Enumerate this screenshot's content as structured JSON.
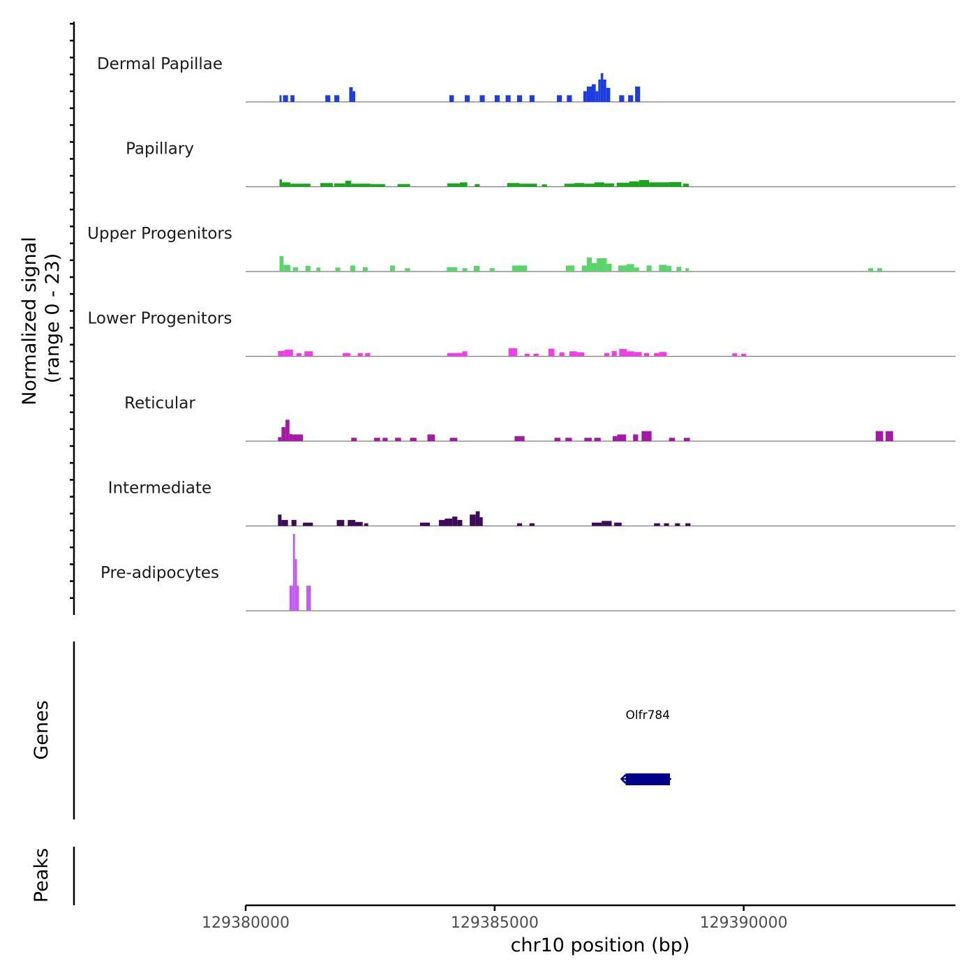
{
  "chart_data": {
    "type": "area",
    "title": "",
    "ylabel_line1": "Normalized signal",
    "ylabel_line2": "(range 0 - 23)",
    "y_range": [
      0,
      23
    ],
    "xlabel": "chr10 position (bp)",
    "x_range": [
      129380000,
      129394250
    ],
    "x_ticks": [
      129380000,
      129385000,
      129390000
    ],
    "x_tick_labels": [
      "129380000",
      "129385000",
      "129390000"
    ],
    "tracks": [
      {
        "name": "Dermal Papillae",
        "color": "#1c3ddf",
        "segments": [
          [
            129380680,
            129380720,
            2
          ],
          [
            129380750,
            129380850,
            2
          ],
          [
            129380900,
            129380980,
            2
          ],
          [
            129381600,
            129381700,
            2
          ],
          [
            129381780,
            129381880,
            2
          ],
          [
            129382080,
            129382150,
            4.4
          ],
          [
            129382150,
            129382200,
            3.2
          ],
          [
            129384090,
            129384180,
            2
          ],
          [
            129384400,
            129384500,
            2
          ],
          [
            129384700,
            129384800,
            2
          ],
          [
            129385000,
            129385100,
            2
          ],
          [
            129385220,
            129385320,
            2
          ],
          [
            129385450,
            129385550,
            2
          ],
          [
            129385700,
            129385800,
            2
          ],
          [
            129386250,
            129386350,
            2
          ],
          [
            129386450,
            129386550,
            2
          ],
          [
            129386780,
            129386850,
            3.2
          ],
          [
            129386850,
            129386950,
            4.6
          ],
          [
            129386950,
            129387030,
            5.3
          ],
          [
            129387030,
            129387080,
            3.2
          ],
          [
            129387080,
            129387130,
            6.7
          ],
          [
            129387130,
            129387180,
            8.6
          ],
          [
            129387180,
            129387240,
            6.7
          ],
          [
            129387240,
            129387320,
            4.2
          ],
          [
            129387500,
            129387600,
            2
          ],
          [
            129387680,
            129387780,
            2
          ],
          [
            129387820,
            129387920,
            4.6
          ]
        ]
      },
      {
        "name": "Papillary",
        "color": "#18a71a",
        "segments": [
          [
            129380680,
            129380730,
            2.2
          ],
          [
            129380730,
            129380900,
            1.3
          ],
          [
            129380900,
            129381300,
            0.9
          ],
          [
            129381500,
            129381750,
            1.1
          ],
          [
            129381780,
            129382000,
            1.0
          ],
          [
            129382000,
            129382120,
            1.8
          ],
          [
            129382120,
            129382500,
            0.9
          ],
          [
            129382500,
            129382800,
            0.8
          ],
          [
            129383050,
            129383300,
            0.8
          ],
          [
            129384050,
            129384300,
            1.0
          ],
          [
            129384300,
            129384450,
            1.3
          ],
          [
            129384600,
            129384700,
            0.8
          ],
          [
            129385250,
            129385500,
            1.1
          ],
          [
            129385500,
            129385850,
            0.9
          ],
          [
            129385950,
            129386050,
            0.7
          ],
          [
            129386400,
            129386600,
            0.9
          ],
          [
            129386600,
            129386800,
            1.1
          ],
          [
            129386800,
            129387000,
            0.9
          ],
          [
            129387000,
            129387200,
            1.3
          ],
          [
            129387200,
            129387400,
            1.0
          ],
          [
            129387450,
            129387700,
            1.2
          ],
          [
            129387700,
            129387900,
            1.6
          ],
          [
            129387900,
            129388100,
            2.0
          ],
          [
            129388100,
            129388500,
            1.3
          ],
          [
            129388500,
            129388750,
            1.4
          ],
          [
            129388780,
            129388900,
            0.9
          ]
        ]
      },
      {
        "name": "Upper Progenitors",
        "color": "#59d56a",
        "segments": [
          [
            129380680,
            129380760,
            4.6
          ],
          [
            129380760,
            129380900,
            2.0
          ],
          [
            129380950,
            129381050,
            1.3
          ],
          [
            129381200,
            129381300,
            1.7
          ],
          [
            129381420,
            129381500,
            1.2
          ],
          [
            129381800,
            129381900,
            1.2
          ],
          [
            129382100,
            129382200,
            1.8
          ],
          [
            129382350,
            129382450,
            1.3
          ],
          [
            129382900,
            129383000,
            1.8
          ],
          [
            129383200,
            129383300,
            1.0
          ],
          [
            129384040,
            129384250,
            1.3
          ],
          [
            129384350,
            129384450,
            1.0
          ],
          [
            129384580,
            129384700,
            1.7
          ],
          [
            129384900,
            129385000,
            1.0
          ],
          [
            129385350,
            129385650,
            1.8
          ],
          [
            129386430,
            129386600,
            1.8
          ],
          [
            129386750,
            129386850,
            1.8
          ],
          [
            129386850,
            129386950,
            4.2
          ],
          [
            129386950,
            129387050,
            2.5
          ],
          [
            129387050,
            129387250,
            4.0
          ],
          [
            129387250,
            129387350,
            2.3
          ],
          [
            129387480,
            129387650,
            1.8
          ],
          [
            129387650,
            129387800,
            2.2
          ],
          [
            129387800,
            129387900,
            1.2
          ],
          [
            129388050,
            129388150,
            1.8
          ],
          [
            129388300,
            129388450,
            2.0
          ],
          [
            129388450,
            129388550,
            1.7
          ],
          [
            129388650,
            129388750,
            1.4
          ],
          [
            129388830,
            129388900,
            1.0
          ],
          [
            129392500,
            129392600,
            1.0
          ],
          [
            129392680,
            129392780,
            1.0
          ]
        ]
      },
      {
        "name": "Lower Progenitors",
        "color": "#f13ee6",
        "segments": [
          [
            129380650,
            129380780,
            1.6
          ],
          [
            129380780,
            129380950,
            2.0
          ],
          [
            129381020,
            129381120,
            1.0
          ],
          [
            129381180,
            129381350,
            1.5
          ],
          [
            129381950,
            129382100,
            1.0
          ],
          [
            129382250,
            129382350,
            1.0
          ],
          [
            129382400,
            129382500,
            1.0
          ],
          [
            129384050,
            129384350,
            1.0
          ],
          [
            129384350,
            129384450,
            1.5
          ],
          [
            129385280,
            129385450,
            2.4
          ],
          [
            129385600,
            129385700,
            0.8
          ],
          [
            129385780,
            129385880,
            0.8
          ],
          [
            129386080,
            129386200,
            2.3
          ],
          [
            129386300,
            129386400,
            1.2
          ],
          [
            129386500,
            129386650,
            1.5
          ],
          [
            129386650,
            129386800,
            1.2
          ],
          [
            129387200,
            129387300,
            1.0
          ],
          [
            129387350,
            129387450,
            1.6
          ],
          [
            129387500,
            129387650,
            2.2
          ],
          [
            129387650,
            129387800,
            1.5
          ],
          [
            129387800,
            129387950,
            1.3
          ],
          [
            129388000,
            129388100,
            1.0
          ],
          [
            129388200,
            129388300,
            1.0
          ],
          [
            129388300,
            129388450,
            1.3
          ],
          [
            129389770,
            129389870,
            0.9
          ],
          [
            129389950,
            129390050,
            0.8
          ]
        ]
      },
      {
        "name": "Reticular",
        "color": "#a619a6",
        "segments": [
          [
            129380650,
            129380720,
            1.2
          ],
          [
            129380720,
            129380800,
            4.2
          ],
          [
            129380800,
            129380880,
            6.4
          ],
          [
            129380880,
            129380940,
            2.1
          ],
          [
            129380940,
            129381150,
            2.0
          ],
          [
            129382120,
            129382230,
            1.0
          ],
          [
            129382580,
            129382700,
            1.0
          ],
          [
            129382750,
            129382850,
            1.0
          ],
          [
            129383000,
            129383120,
            1.0
          ],
          [
            129383300,
            129383430,
            1.0
          ],
          [
            129383650,
            129383800,
            2.0
          ],
          [
            129384100,
            129384250,
            1.0
          ],
          [
            129385400,
            129385600,
            1.5
          ],
          [
            129386200,
            129386320,
            1.0
          ],
          [
            129386420,
            129386550,
            1.0
          ],
          [
            129386800,
            129386950,
            1.0
          ],
          [
            129387000,
            129387130,
            1.0
          ],
          [
            129387370,
            129387460,
            1.5
          ],
          [
            129387460,
            129387640,
            2.0
          ],
          [
            129387780,
            129387880,
            2.0
          ],
          [
            129387950,
            129388150,
            3.0
          ],
          [
            129388500,
            129388620,
            1.0
          ],
          [
            129388800,
            129388920,
            1.0
          ],
          [
            129392650,
            129392800,
            3.0
          ],
          [
            129392850,
            129393000,
            3.0
          ]
        ]
      },
      {
        "name": "Intermediate",
        "color": "#3d0a5c",
        "segments": [
          [
            129380650,
            129380720,
            3.4
          ],
          [
            129380720,
            129380850,
            1.8
          ],
          [
            129380920,
            129381020,
            1.8
          ],
          [
            129381150,
            129381350,
            1.0
          ],
          [
            129381830,
            129381980,
            1.8
          ],
          [
            129382050,
            129382200,
            1.8
          ],
          [
            129382200,
            129382350,
            1.2
          ],
          [
            129382380,
            129382460,
            0.8
          ],
          [
            129383500,
            129383700,
            1.0
          ],
          [
            129383880,
            129384000,
            1.8
          ],
          [
            129384000,
            129384150,
            2.2
          ],
          [
            129384150,
            129384250,
            2.8
          ],
          [
            129384250,
            129384350,
            1.8
          ],
          [
            129384500,
            129384620,
            3.4
          ],
          [
            129384620,
            129384700,
            4.4
          ],
          [
            129384700,
            129384760,
            2.6
          ],
          [
            129385450,
            129385550,
            0.8
          ],
          [
            129385700,
            129385800,
            0.8
          ],
          [
            129386950,
            129387150,
            1.0
          ],
          [
            129387150,
            129387350,
            1.5
          ],
          [
            129387400,
            129387550,
            1.0
          ],
          [
            129388200,
            129388320,
            0.8
          ],
          [
            129388400,
            129388500,
            0.8
          ],
          [
            129388620,
            129388720,
            0.8
          ],
          [
            129388830,
            129388930,
            0.8
          ]
        ]
      },
      {
        "name": "Pre-adipocytes",
        "color": "#c15cf6",
        "segments": [
          [
            129380880,
            129380950,
            7.5
          ],
          [
            129380950,
            129380990,
            23
          ],
          [
            129380990,
            129381030,
            15.5
          ],
          [
            129381030,
            129381070,
            7.5
          ],
          [
            129381220,
            129381310,
            7.5
          ]
        ]
      }
    ],
    "genes_label": "Genes",
    "gene": {
      "name": "Olfr784",
      "start": 129387630,
      "end": 129388520,
      "strand": "-",
      "color": "#00008b"
    },
    "peaks_label": "Peaks"
  }
}
